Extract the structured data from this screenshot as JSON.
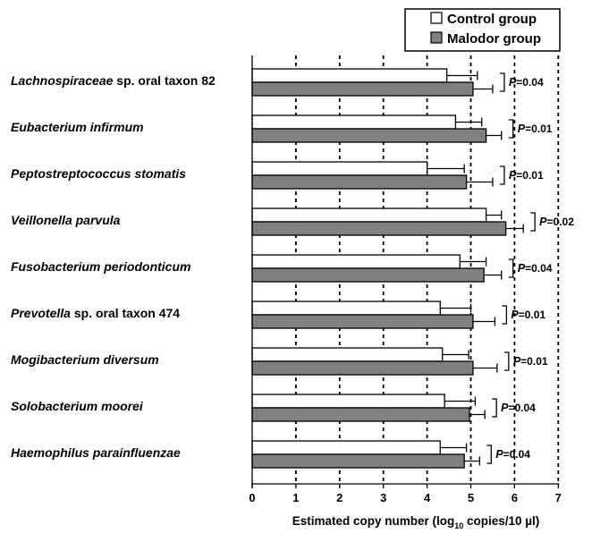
{
  "chart_data": {
    "type": "bar",
    "orientation": "horizontal",
    "xlabel": {
      "prefix": "Estimated copy number (log",
      "subscript": "10",
      "suffix": " copies/10 µl)"
    },
    "xlim": [
      0,
      7
    ],
    "xticks": [
      "0",
      "1",
      "2",
      "3",
      "4",
      "5",
      "6",
      "7"
    ],
    "grid": "vertical dashed",
    "legend_position": "top-right",
    "categories": [
      {
        "name": "Lachnospiraceae",
        "suffix": " sp. oral taxon 82"
      },
      {
        "name": "Eubacterium infirmum",
        "suffix": ""
      },
      {
        "name": "Peptostreptococcus stomatis",
        "suffix": ""
      },
      {
        "name": "Veillonella parvula",
        "suffix": ""
      },
      {
        "name": "Fusobacterium periodonticum",
        "suffix": ""
      },
      {
        "name": "Prevotella",
        "suffix": " sp. oral taxon 474"
      },
      {
        "name": "Mogibacterium diversum",
        "suffix": ""
      },
      {
        "name": "Solobacterium moorei",
        "suffix": ""
      },
      {
        "name": "Haemophilus parainfluenzae",
        "suffix": ""
      }
    ],
    "series": [
      {
        "name": "Control group",
        "color": "#ffffff",
        "values": [
          4.45,
          4.65,
          4.0,
          5.35,
          4.75,
          4.3,
          4.35,
          4.4,
          4.3
        ],
        "errors": [
          0.7,
          0.6,
          0.85,
          0.35,
          0.6,
          0.7,
          0.6,
          0.7,
          0.6
        ]
      },
      {
        "name": "Malodor group",
        "color": "#808080",
        "values": [
          5.05,
          5.35,
          4.9,
          5.8,
          5.3,
          5.05,
          5.05,
          4.97,
          4.85
        ],
        "errors": [
          0.45,
          0.35,
          0.6,
          0.4,
          0.4,
          0.5,
          0.55,
          0.35,
          0.35
        ]
      }
    ],
    "p_prefix": "P",
    "p_values": [
      "=0.04",
      "=0.01",
      "=0.01",
      "=0.02",
      "=0.04",
      "=0.01",
      "=0.01",
      "=0.04",
      "=0.04"
    ]
  }
}
